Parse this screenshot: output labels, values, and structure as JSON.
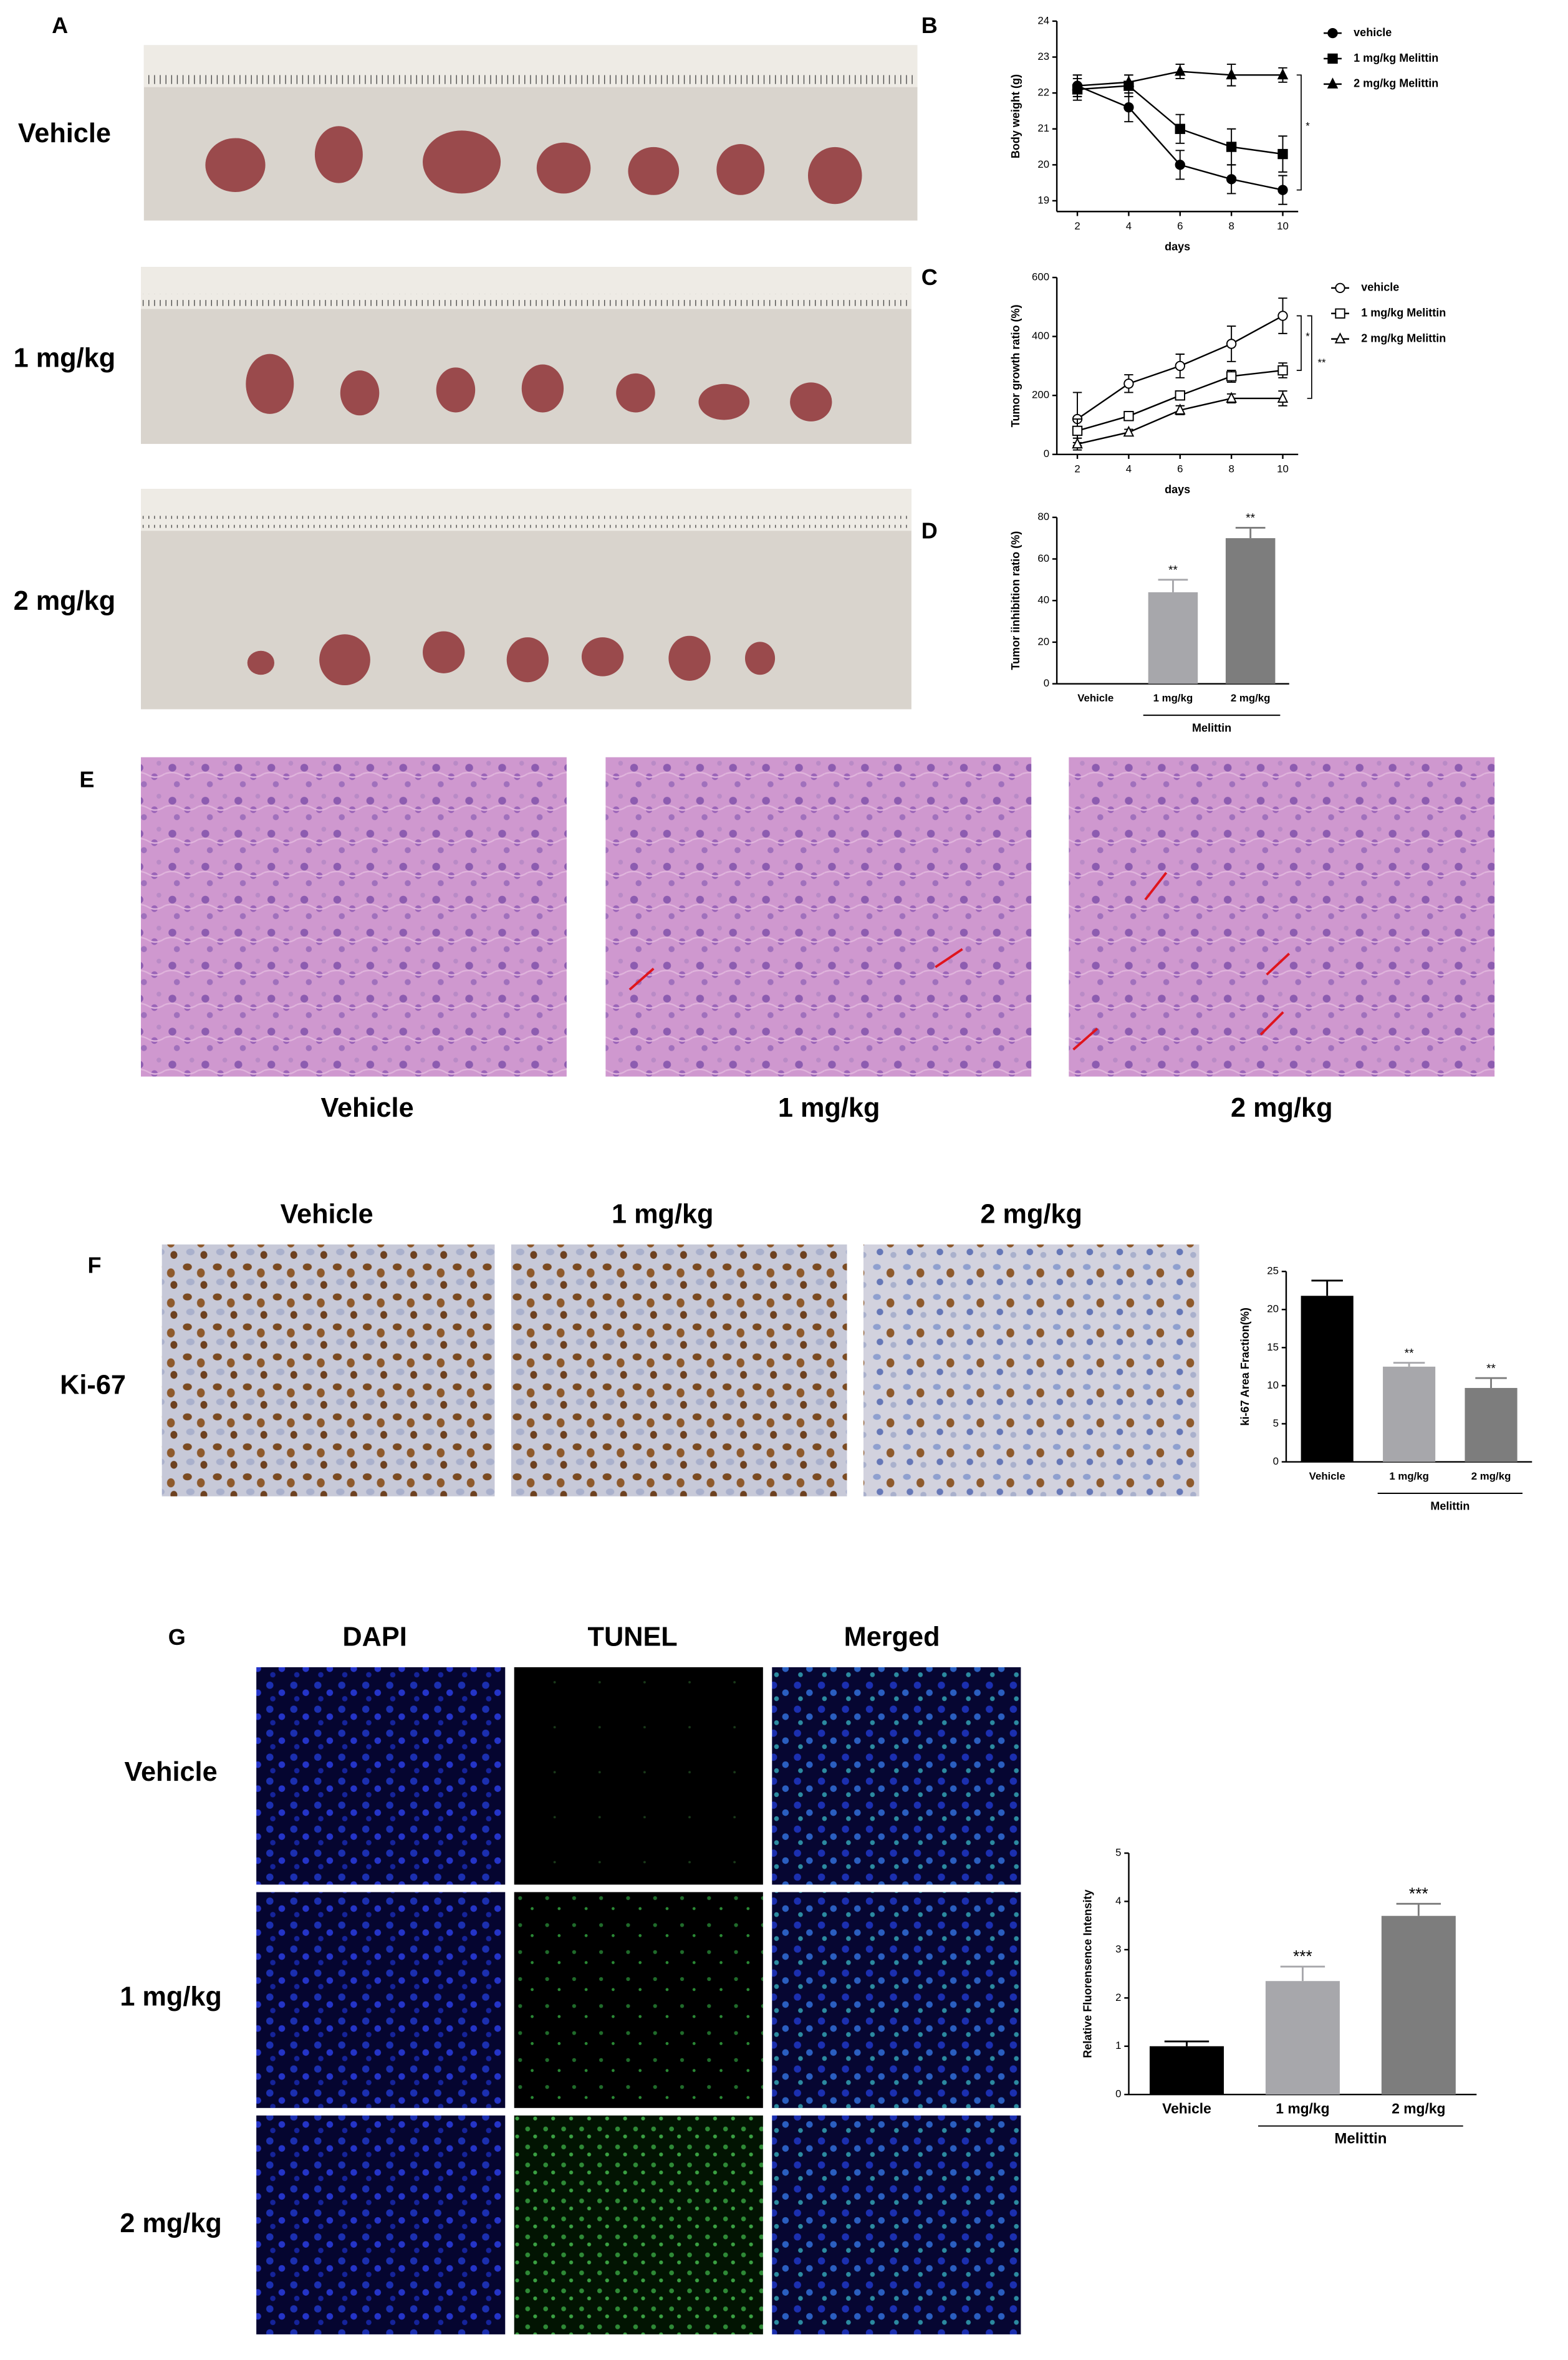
{
  "figure": {
    "panel_labels": [
      "A",
      "B",
      "C",
      "D",
      "E",
      "F",
      "G"
    ],
    "panel_a": {
      "row_labels": [
        "Vehicle",
        "1 mg/kg",
        "2 mg/kg"
      ]
    },
    "panel_e": {
      "column_labels": [
        "Vehicle",
        "1 mg/kg",
        "2 mg/kg"
      ]
    },
    "panel_f": {
      "column_labels": [
        "Vehicle",
        "1 mg/kg",
        "2 mg/kg"
      ],
      "row_label": "Ki-67"
    },
    "panel_g": {
      "column_labels": [
        "DAPI",
        "TUNEL",
        "Merged"
      ],
      "row_labels": [
        "Vehicle",
        "1 mg/kg",
        "2 mg/kg"
      ]
    }
  },
  "chart_data": [
    {
      "type": "line",
      "ylabel": "Body weight (g)",
      "xlabel": "days",
      "x": [
        2,
        4,
        6,
        8,
        10
      ],
      "xlim": [
        1.2,
        10.6
      ],
      "xticks": [
        2,
        4,
        6,
        8,
        10
      ],
      "ylim": [
        18.7,
        24
      ],
      "yticks": [
        19,
        20,
        21,
        22,
        23,
        24
      ],
      "series": [
        {
          "name": "vehicle",
          "color": "#000000",
          "marker": "circle",
          "filled": true,
          "values": [
            22.2,
            21.6,
            20.0,
            19.6,
            19.3
          ],
          "errors": [
            0.3,
            0.4,
            0.4,
            0.4,
            0.4
          ]
        },
        {
          "name": "1 mg/kg Melittin",
          "color": "#000000",
          "marker": "square",
          "filled": true,
          "values": [
            22.1,
            22.2,
            21.0,
            20.5,
            20.3
          ],
          "errors": [
            0.3,
            0.3,
            0.4,
            0.5,
            0.5
          ]
        },
        {
          "name": "2 mg/kg Melittin",
          "color": "#000000",
          "marker": "triangle",
          "filled": true,
          "values": [
            22.2,
            22.3,
            22.6,
            22.5,
            22.5
          ],
          "errors": [
            0.3,
            0.2,
            0.2,
            0.3,
            0.2
          ]
        }
      ],
      "annotations": [
        "*"
      ]
    },
    {
      "type": "line",
      "ylabel": "Tumor growth ratio (%)",
      "xlabel": "days",
      "x": [
        2,
        4,
        6,
        8,
        10
      ],
      "xlim": [
        1.2,
        10.6
      ],
      "xticks": [
        2,
        4,
        6,
        8,
        10
      ],
      "ylim": [
        0,
        600
      ],
      "yticks": [
        0,
        200,
        400,
        600
      ],
      "series": [
        {
          "name": "vehicle",
          "color": "#000000",
          "marker": "circle",
          "filled": false,
          "values": [
            120,
            240,
            300,
            375,
            470
          ],
          "errors": [
            90,
            30,
            40,
            60,
            60
          ]
        },
        {
          "name": "1 mg/kg Melittin",
          "color": "#000000",
          "marker": "square",
          "filled": false,
          "values": [
            80,
            130,
            200,
            265,
            285
          ],
          "errors": [
            40,
            15,
            15,
            20,
            25
          ]
        },
        {
          "name": "2 mg/kg Melittin",
          "color": "#000000",
          "marker": "triangle",
          "filled": false,
          "values": [
            35,
            75,
            150,
            190,
            190
          ],
          "errors": [
            20,
            10,
            15,
            15,
            25
          ]
        }
      ],
      "annotations": [
        "*",
        "**"
      ]
    },
    {
      "type": "bar",
      "ylabel": "Tumor iinhibition ratio (%)",
      "categories": [
        "Vehicle",
        "1 mg/kg",
        "2 mg/kg"
      ],
      "values": [
        0,
        44,
        70
      ],
      "errors": [
        0,
        6,
        5
      ],
      "colors": [
        "#000000",
        "#a7a7ab",
        "#7d7d7d"
      ],
      "significance": [
        null,
        "**",
        "**"
      ],
      "group_label": "Melittin",
      "ylim": [
        0,
        80
      ],
      "yticks": [
        0,
        20,
        40,
        60,
        80
      ]
    },
    {
      "type": "bar",
      "ylabel": "ki-67 Area Fraction(%)",
      "categories": [
        "Vehicle",
        "1 mg/kg",
        "2 mg/kg"
      ],
      "values": [
        21.8,
        12.5,
        9.7
      ],
      "errors": [
        2,
        0.5,
        1.3
      ],
      "colors": [
        "#000000",
        "#a7a7ab",
        "#7d7d7d"
      ],
      "significance": [
        null,
        "**",
        "**"
      ],
      "group_label": "Melittin",
      "ylim": [
        0,
        25
      ],
      "yticks": [
        0,
        5,
        10,
        15,
        20,
        25
      ]
    },
    {
      "type": "bar",
      "ylabel": "Relative Fluorensence Intensity",
      "categories": [
        "Vehicle",
        "1 mg/kg",
        "2 mg/kg"
      ],
      "values": [
        1.0,
        2.35,
        3.7
      ],
      "errors": [
        0.1,
        0.3,
        0.25
      ],
      "colors": [
        "#000000",
        "#a7a7ab",
        "#7d7d7d"
      ],
      "significance": [
        null,
        "***",
        "***"
      ],
      "group_label": "Melittin",
      "ylim": [
        0,
        5
      ],
      "yticks": [
        0,
        1,
        2,
        3,
        4,
        5
      ]
    }
  ]
}
